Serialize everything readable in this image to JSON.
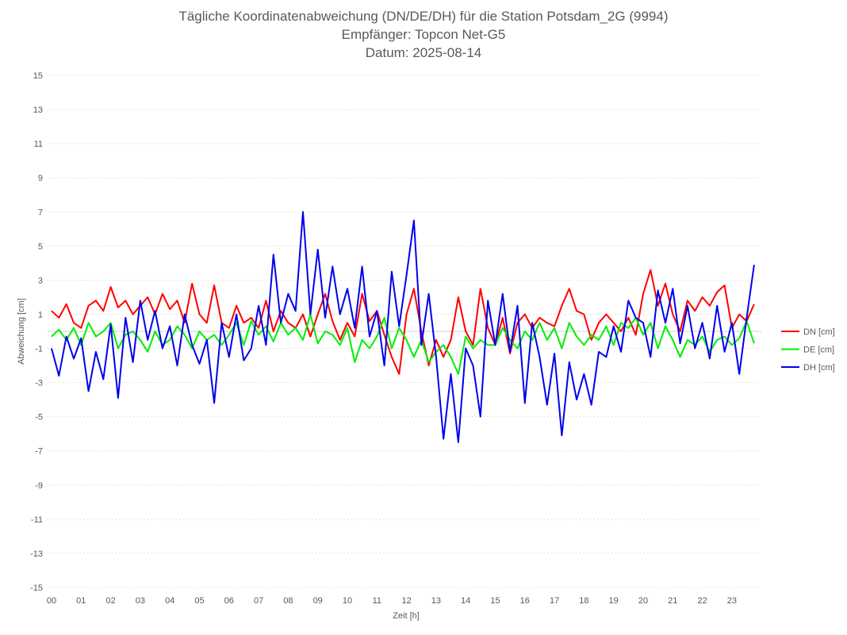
{
  "chart_data": {
    "type": "line",
    "title": [
      "Tägliche Koordinatenabweichung (DN/DE/DH) für die Station Potsdam_2G (9994)",
      "Empfänger: Topcon Net-G5",
      "Datum: 2025-08-14"
    ],
    "xlabel": "Zeit [h]",
    "ylabel": "Abweichung [cm]",
    "xlim": [
      0,
      24
    ],
    "ylim": [
      -15,
      15
    ],
    "xticks": [
      "00",
      "01",
      "02",
      "03",
      "04",
      "05",
      "06",
      "07",
      "08",
      "09",
      "10",
      "11",
      "12",
      "13",
      "14",
      "15",
      "16",
      "17",
      "18",
      "19",
      "20",
      "21",
      "22",
      "23"
    ],
    "yticks": [
      15,
      13,
      11,
      9,
      7,
      5,
      3,
      1,
      -1,
      -3,
      -5,
      -7,
      -9,
      -11,
      -13,
      -15
    ],
    "grid": "horizontal dotted",
    "legend": "right",
    "x": [
      0,
      0.25,
      0.5,
      0.75,
      1,
      1.25,
      1.5,
      1.75,
      2,
      2.25,
      2.5,
      2.75,
      3,
      3.25,
      3.5,
      3.75,
      4,
      4.25,
      4.5,
      4.75,
      5,
      5.25,
      5.5,
      5.75,
      6,
      6.25,
      6.5,
      6.75,
      7,
      7.25,
      7.5,
      7.75,
      8,
      8.25,
      8.5,
      8.75,
      9,
      9.25,
      9.5,
      9.75,
      10,
      10.25,
      10.5,
      10.75,
      11,
      11.25,
      11.5,
      11.75,
      12,
      12.25,
      12.5,
      12.75,
      13,
      13.25,
      13.5,
      13.75,
      14,
      14.25,
      14.5,
      14.75,
      15,
      15.25,
      15.5,
      15.75,
      16,
      16.25,
      16.5,
      16.75,
      17,
      17.25,
      17.5,
      17.75,
      18,
      18.25,
      18.5,
      18.75,
      19,
      19.25,
      19.5,
      19.75,
      20,
      20.25,
      20.5,
      20.75,
      21,
      21.25,
      21.5,
      21.75,
      22,
      22.25,
      22.5,
      22.75,
      23,
      23.25,
      23.5,
      23.75
    ],
    "series": [
      {
        "name": "DN [cm]",
        "color": "#ff0000",
        "values": [
          1.2,
          0.8,
          1.6,
          0.5,
          0.2,
          1.5,
          1.8,
          1.2,
          2.6,
          1.4,
          1.8,
          1.0,
          1.5,
          2.0,
          1.0,
          2.2,
          1.3,
          1.8,
          0.5,
          2.8,
          1.0,
          0.5,
          2.7,
          0.5,
          0.2,
          1.5,
          0.5,
          0.8,
          0.2,
          1.8,
          0.0,
          1.2,
          0.5,
          0.2,
          1.0,
          -0.3,
          1.0,
          2.2,
          0.6,
          -0.5,
          0.5,
          -0.3,
          2.2,
          0.6,
          1.2,
          -0.2,
          -1.5,
          -2.5,
          1.0,
          2.5,
          0.0,
          -2.0,
          -0.5,
          -1.5,
          -0.5,
          2.0,
          0.0,
          -0.8,
          2.5,
          0.2,
          -0.8,
          0.8,
          -1.3,
          0.5,
          1.0,
          0.2,
          0.8,
          0.5,
          0.3,
          1.5,
          2.5,
          1.2,
          1.0,
          -0.5,
          0.5,
          1.0,
          0.5,
          0.0,
          0.8,
          -0.2,
          2.2,
          3.6,
          1.5,
          2.8,
          1.0,
          0.0,
          1.8,
          1.2,
          2.0,
          1.5,
          2.3,
          2.7,
          0.2,
          1.0,
          0.6,
          1.6
        ]
      },
      {
        "name": "DE [cm]",
        "color": "#00ee00",
        "values": [
          -0.3,
          0.1,
          -0.5,
          0.2,
          -0.8,
          0.5,
          -0.3,
          0.0,
          0.5,
          -1.0,
          -0.2,
          0.0,
          -0.5,
          -1.2,
          0.0,
          -0.8,
          -0.5,
          0.3,
          -0.2,
          -1.0,
          0.0,
          -0.5,
          -0.2,
          -0.8,
          -0.2,
          0.5,
          -0.8,
          0.6,
          -0.2,
          0.3,
          -0.6,
          0.5,
          -0.2,
          0.2,
          -0.5,
          1.0,
          -0.7,
          0.0,
          -0.2,
          -0.8,
          0.2,
          -1.8,
          -0.5,
          -1.0,
          -0.3,
          0.8,
          -1.0,
          0.2,
          -0.5,
          -1.5,
          -0.5,
          -1.8,
          -1.2,
          -0.8,
          -1.5,
          -2.5,
          -0.3,
          -1.0,
          -0.5,
          -0.8,
          -0.8,
          0.2,
          -0.5,
          -1.0,
          0.0,
          -0.5,
          0.5,
          -0.5,
          0.2,
          -1.0,
          0.5,
          -0.3,
          -0.8,
          -0.2,
          -0.5,
          0.3,
          -0.8,
          0.5,
          0.2,
          0.8,
          -0.2,
          0.5,
          -1.0,
          0.3,
          -0.5,
          -1.5,
          -0.5,
          -0.8,
          -0.3,
          -1.2,
          -0.5,
          -0.3,
          -0.8,
          -0.4,
          0.6,
          -0.7
        ]
      },
      {
        "name": "DH [cm]",
        "color": "#0000ee",
        "values": [
          -1.0,
          -2.6,
          -0.3,
          -1.6,
          -0.4,
          -3.5,
          -1.2,
          -2.8,
          0.4,
          -3.9,
          0.8,
          -1.8,
          1.8,
          -0.5,
          1.2,
          -1.0,
          0.3,
          -2.0,
          1.0,
          -0.8,
          -1.9,
          -0.5,
          -4.2,
          0.5,
          -1.5,
          1.0,
          -1.7,
          -1.0,
          1.5,
          -0.8,
          4.5,
          0.5,
          2.2,
          1.2,
          7.0,
          1.0,
          4.8,
          0.8,
          3.8,
          1.0,
          2.5,
          0.2,
          3.8,
          -0.3,
          1.2,
          -2.0,
          3.5,
          0.3,
          3.3,
          6.5,
          -0.8,
          2.2,
          -1.5,
          -6.3,
          -2.5,
          -6.5,
          -1.0,
          -2.0,
          -5.0,
          1.8,
          -0.8,
          2.2,
          -1.2,
          1.5,
          -4.2,
          0.5,
          -1.5,
          -4.3,
          -1.3,
          -6.1,
          -1.8,
          -4.0,
          -2.5,
          -4.3,
          -1.2,
          -1.5,
          0.3,
          -1.2,
          1.8,
          0.8,
          0.5,
          -1.5,
          2.4,
          0.5,
          2.5,
          -0.7,
          1.5,
          -1.0,
          0.5,
          -1.6,
          1.5,
          -1.2,
          0.5,
          -2.5,
          0.8,
          3.9
        ]
      }
    ]
  }
}
